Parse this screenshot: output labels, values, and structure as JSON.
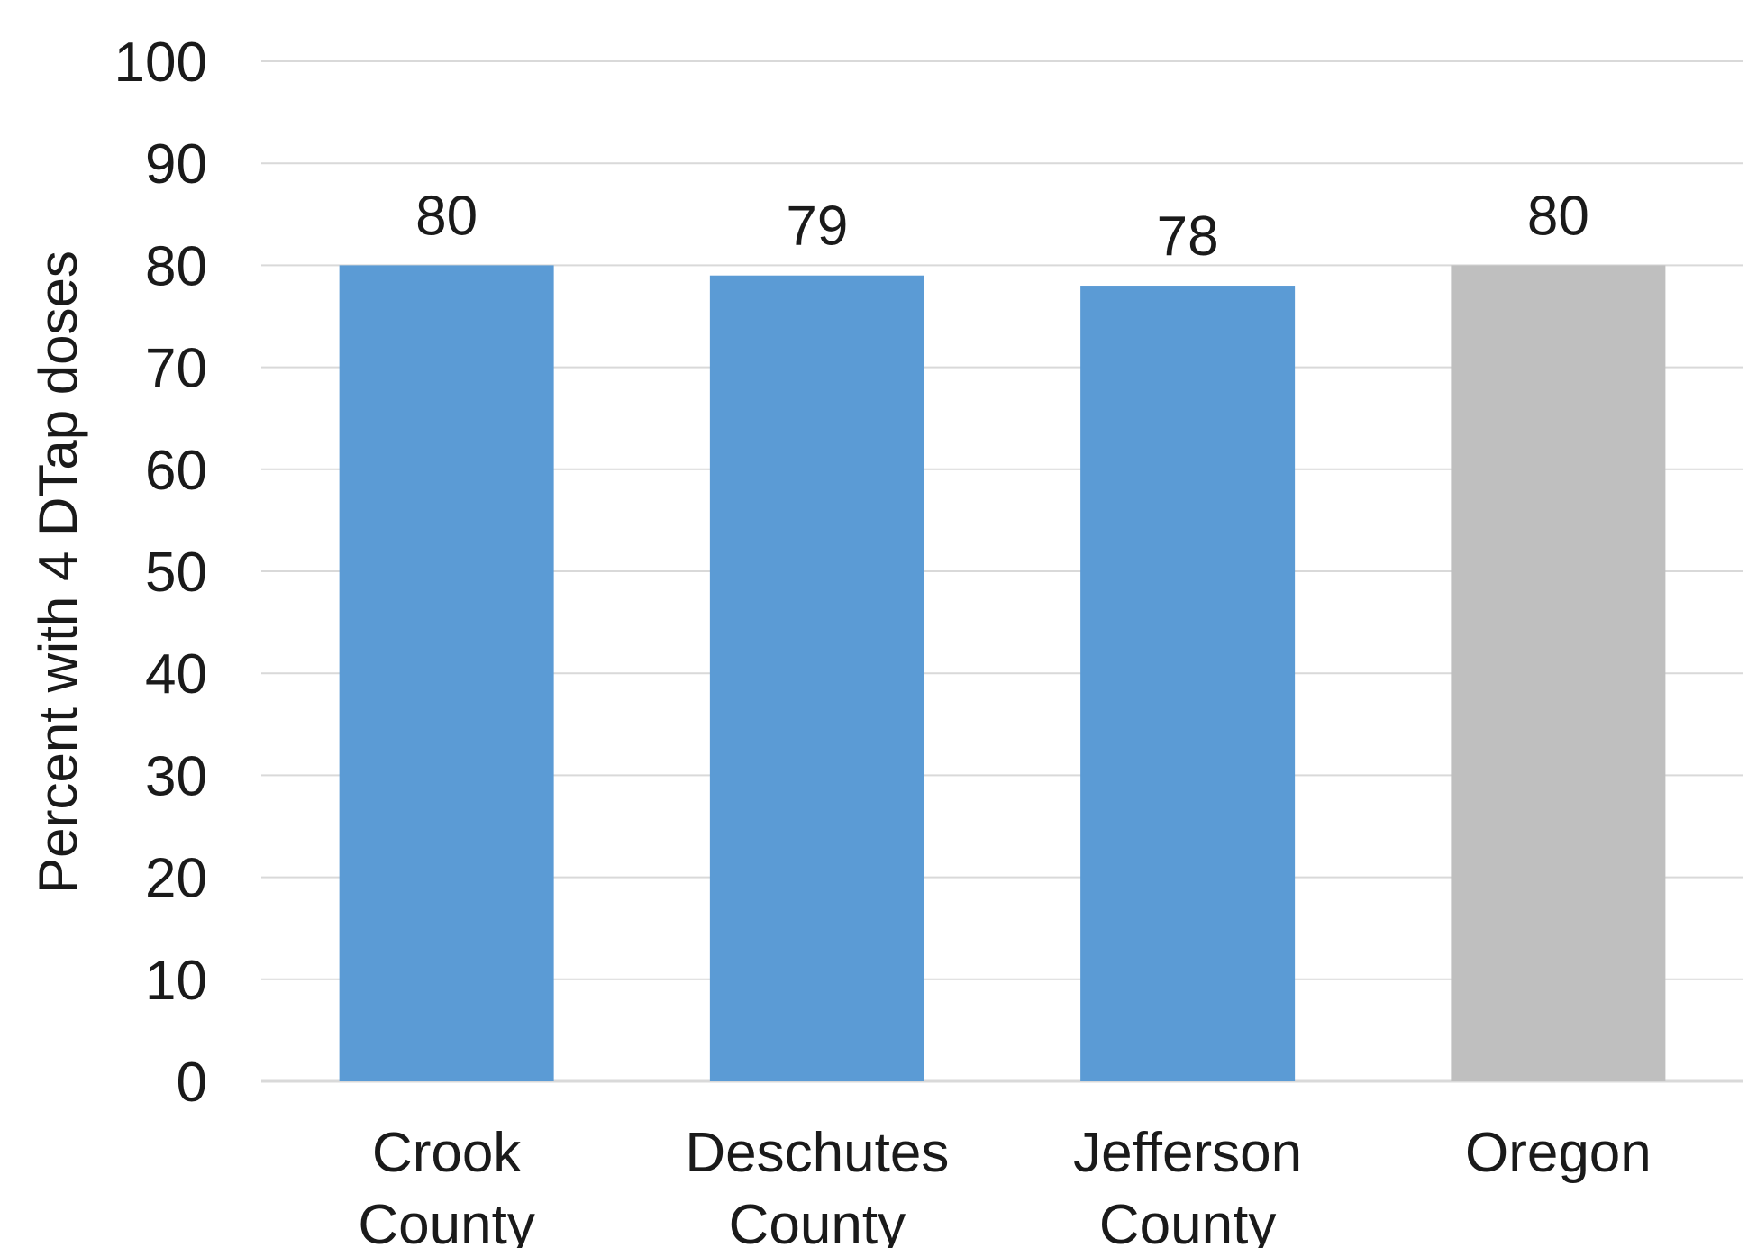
{
  "chart_data": {
    "type": "bar",
    "title": "",
    "xlabel": "",
    "ylabel": "Percent with 4 DTap doses",
    "ylim": [
      0,
      100
    ],
    "yticks": [
      0,
      10,
      20,
      30,
      40,
      50,
      60,
      70,
      80,
      90,
      100
    ],
    "grid": true,
    "categories": [
      [
        "Crook",
        "County"
      ],
      [
        "Deschutes",
        "County"
      ],
      [
        "Jefferson",
        "County"
      ],
      [
        "Oregon"
      ]
    ],
    "values": [
      80,
      79,
      78,
      80
    ],
    "colors": [
      "#5b9bd5",
      "#5b9bd5",
      "#5b9bd5",
      "#bfbfbf"
    ],
    "gridColor": "#d9d9d9",
    "axisColor": "#d9d9d9"
  }
}
